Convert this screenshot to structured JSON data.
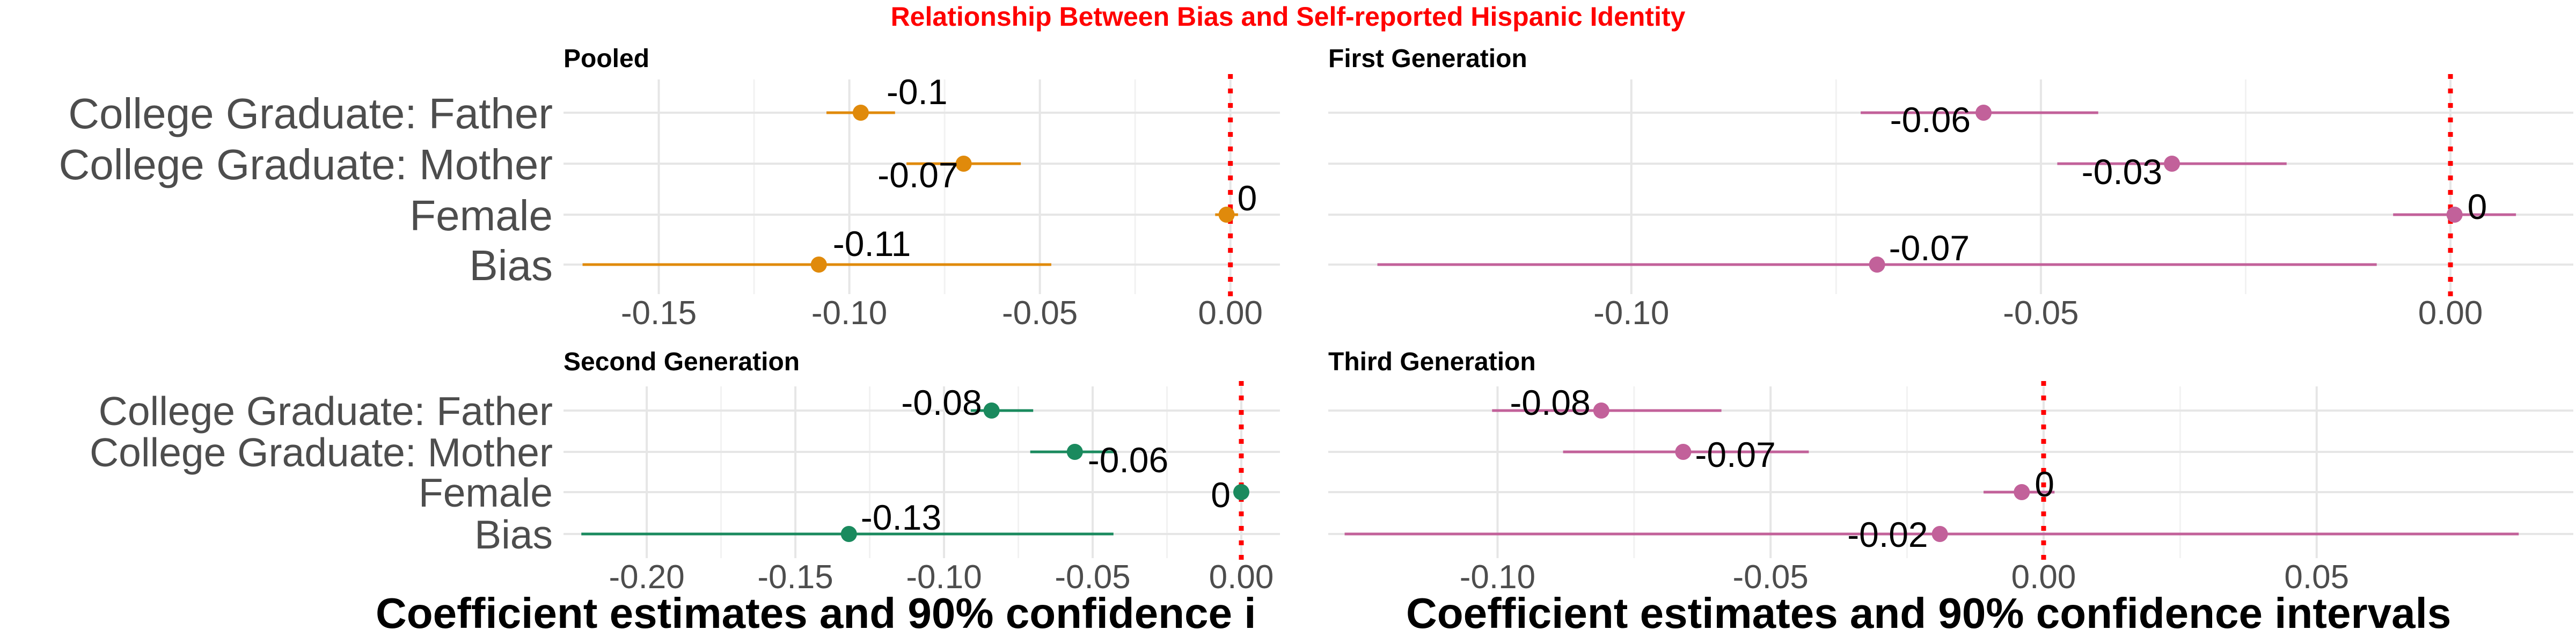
{
  "title": "Relationship Between Bias and Self-reported Hispanic Identity",
  "title_color": "#ff0000",
  "x_label": "Coefficient estimates and 90% confidence intervals",
  "x_label_left_visible": "Coefficient estimates and 90% confidence i",
  "chart_data": [
    {
      "type": "scatter",
      "title": "Pooled",
      "color": "#e08a0b",
      "categories": [
        "College Graduate: Father",
        "College Graduate: Mother",
        "Female",
        "Bias"
      ],
      "values": [
        -0.097,
        -0.07,
        -0.001,
        -0.108
      ],
      "ci_low": [
        -0.106,
        -0.085,
        -0.004,
        -0.17
      ],
      "ci_high": [
        -0.088,
        -0.055,
        0.002,
        -0.047
      ],
      "labels": [
        "-0.1",
        "-0.07",
        "0",
        "-0.11"
      ],
      "xlim": [
        -0.175,
        0.013
      ],
      "xticks": [
        -0.15,
        -0.1,
        -0.05,
        0.0
      ],
      "xtick_labels": [
        "-0.15",
        "-0.10",
        "-0.05",
        "0.00"
      ],
      "reference_line": 0
    },
    {
      "type": "scatter",
      "title": "First Generation",
      "color": "#c2619a",
      "categories": [
        "College Graduate: Father",
        "College Graduate: Mother",
        "Female",
        "Bias"
      ],
      "values": [
        -0.057,
        -0.034,
        0.0005,
        -0.07
      ],
      "ci_low": [
        -0.072,
        -0.048,
        -0.007,
        -0.131
      ],
      "ci_high": [
        -0.043,
        -0.02,
        0.008,
        -0.009
      ],
      "labels": [
        "-0.06",
        "-0.03",
        "0",
        "-0.07"
      ],
      "xlim": [
        -0.137,
        0.015
      ],
      "xticks": [
        -0.1,
        -0.05,
        0.0
      ],
      "xtick_labels": [
        "-0.10",
        "-0.05",
        "0.00"
      ],
      "reference_line": 0
    },
    {
      "type": "scatter",
      "title": "Second Generation",
      "color": "#1a8a5e",
      "categories": [
        "College Graduate: Father",
        "College Graduate: Mother",
        "Female",
        "Bias"
      ],
      "values": [
        -0.084,
        -0.056,
        0.0,
        -0.132
      ],
      "ci_low": [
        -0.091,
        -0.071,
        -0.001,
        -0.222
      ],
      "ci_high": [
        -0.07,
        -0.042,
        0.001,
        -0.043
      ],
      "labels": [
        "-0.08",
        "-0.06",
        "0",
        "-0.13"
      ],
      "xlim": [
        -0.228,
        0.013
      ],
      "xticks": [
        -0.2,
        -0.15,
        -0.1,
        -0.05,
        0.0
      ],
      "xtick_labels": [
        "-0.20",
        "-0.15",
        "-0.10",
        "-0.05",
        "0.00"
      ],
      "reference_line": 0
    },
    {
      "type": "scatter",
      "title": "Third Generation",
      "color": "#c2619a",
      "categories": [
        "College Graduate: Father",
        "College Graduate: Mother",
        "Female",
        "Bias"
      ],
      "values": [
        -0.081,
        -0.066,
        -0.004,
        -0.019
      ],
      "ci_low": [
        -0.101,
        -0.088,
        -0.011,
        -0.128
      ],
      "ci_high": [
        -0.059,
        -0.043,
        0.002,
        0.087
      ],
      "labels": [
        "-0.08",
        "-0.07",
        "0",
        "-0.02"
      ],
      "xlim": [
        -0.131,
        0.097
      ],
      "xticks": [
        -0.1,
        -0.05,
        0.0,
        0.05
      ],
      "xtick_labels": [
        "-0.10",
        "-0.05",
        "0.00",
        "0.05"
      ],
      "reference_line": 0
    }
  ]
}
